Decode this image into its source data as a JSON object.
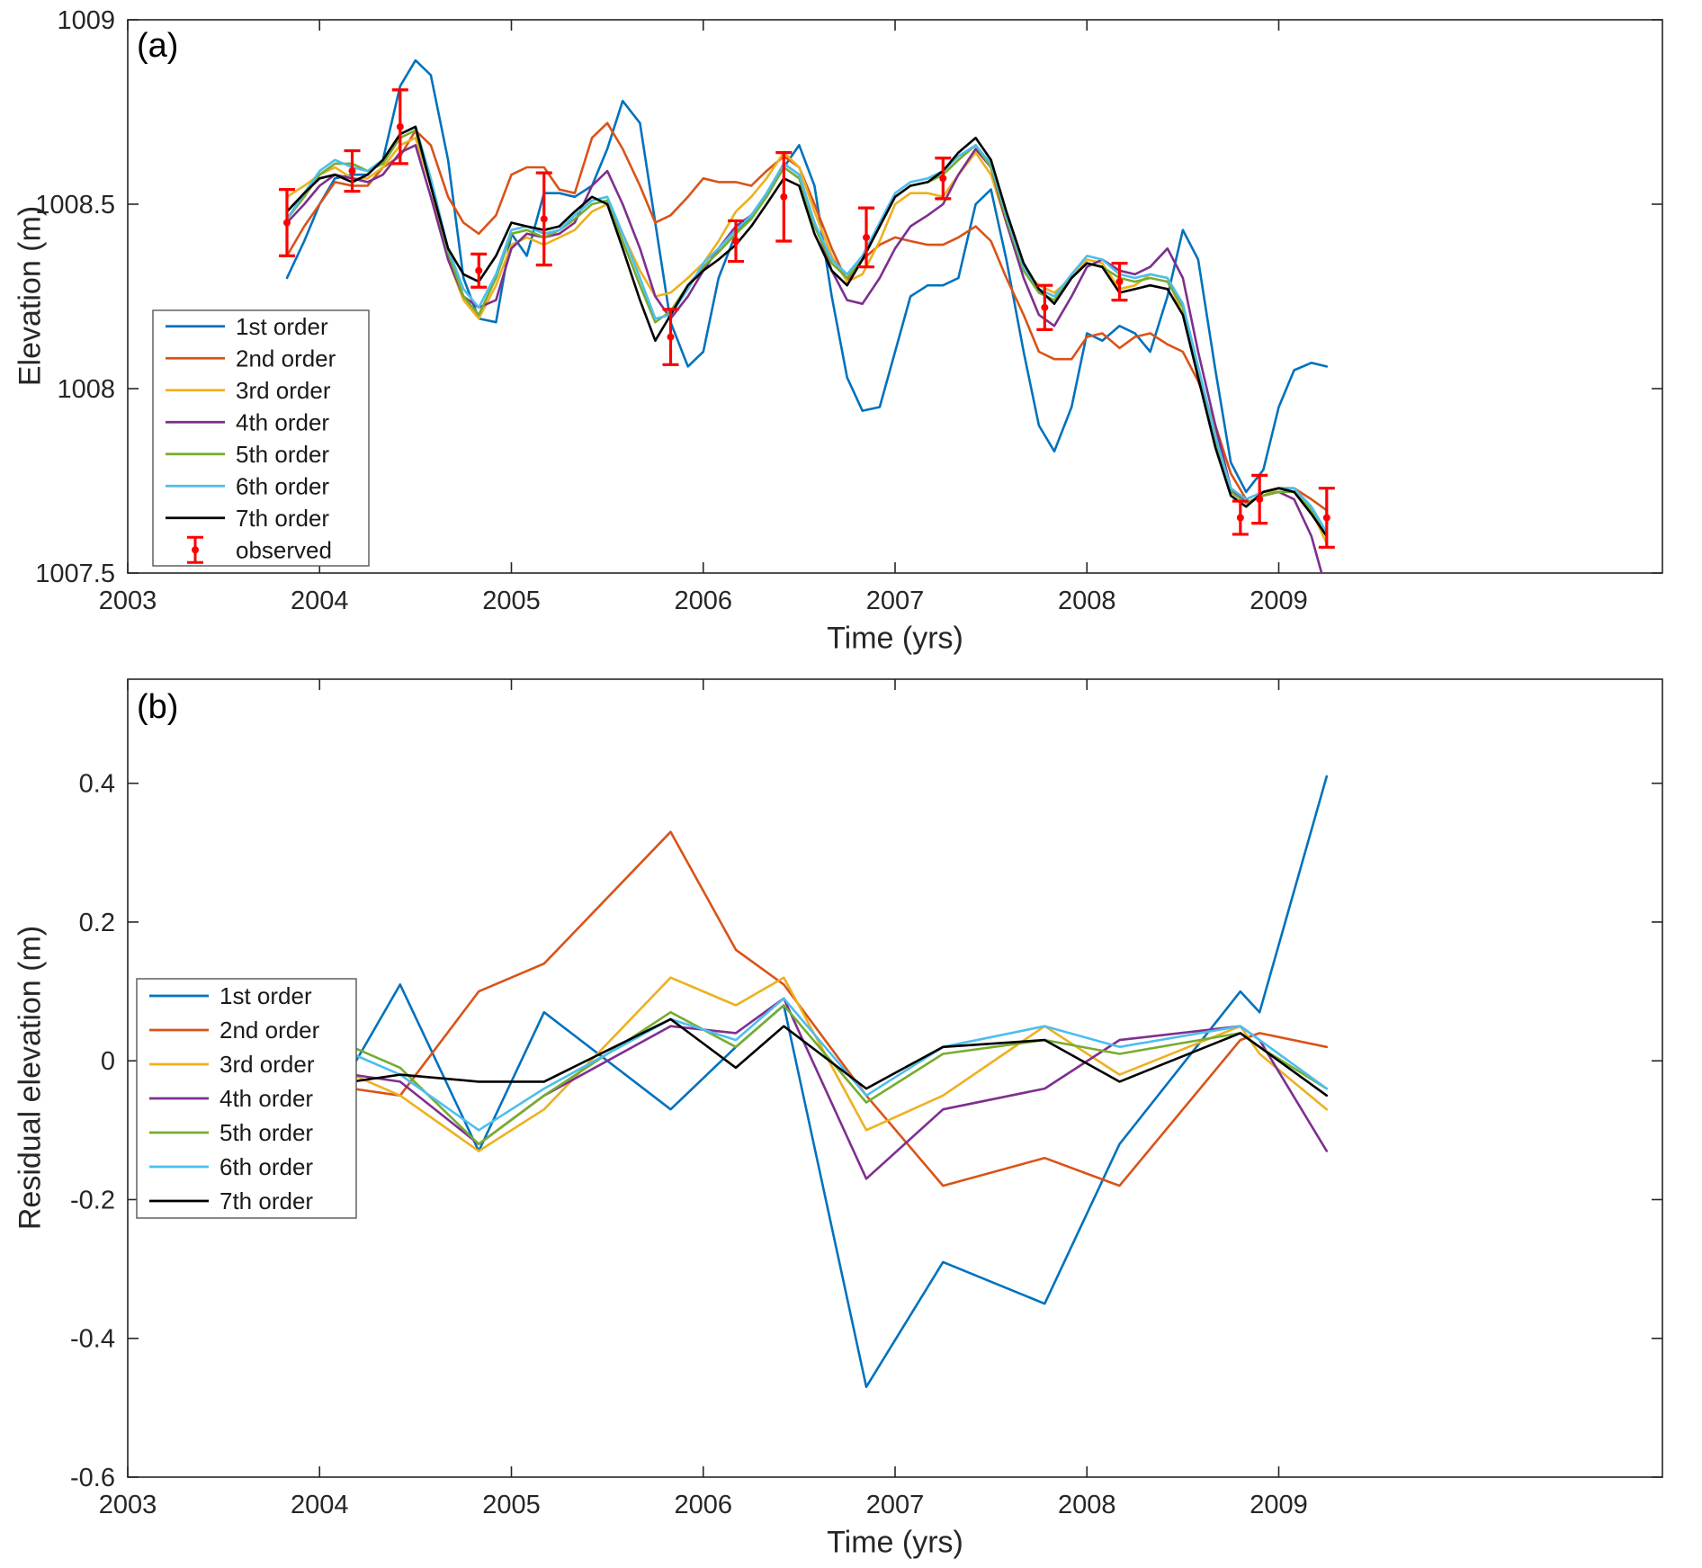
{
  "figure_colors": {
    "order1": "#0072BD",
    "order2": "#D95319",
    "order3": "#EDB120",
    "order4": "#7E2F8E",
    "order5": "#77AC30",
    "order6": "#4DBEEE",
    "order7": "#000000",
    "observed": "#FF0000",
    "axis": "#262626"
  },
  "chart_data": [
    {
      "id": "a",
      "type": "line",
      "panel_label": "(a)",
      "xlabel": "Time (yrs)",
      "ylabel": "Elevation (m)",
      "xlim": [
        2003,
        2011
      ],
      "ylim": [
        1007.5,
        1009
      ],
      "xticks": [
        2003,
        2004,
        2005,
        2006,
        2007,
        2008,
        2009
      ],
      "yticks": [
        1007.5,
        1008,
        1008.5,
        1009
      ],
      "grid": false,
      "legend_position": "west",
      "x": [
        2003.83,
        2003.92,
        2004.0,
        2004.08,
        2004.17,
        2004.25,
        2004.33,
        2004.42,
        2004.5,
        2004.58,
        2004.67,
        2004.75,
        2004.83,
        2004.92,
        2005.0,
        2005.08,
        2005.17,
        2005.25,
        2005.33,
        2005.42,
        2005.5,
        2005.58,
        2005.67,
        2005.75,
        2005.83,
        2005.92,
        2006.0,
        2006.08,
        2006.17,
        2006.25,
        2006.33,
        2006.42,
        2006.5,
        2006.58,
        2006.67,
        2006.75,
        2006.83,
        2006.92,
        2007.0,
        2007.08,
        2007.17,
        2007.25,
        2007.33,
        2007.42,
        2007.5,
        2007.58,
        2007.67,
        2007.75,
        2007.83,
        2007.92,
        2008.0,
        2008.08,
        2008.17,
        2008.25,
        2008.33,
        2008.42,
        2008.5,
        2008.58,
        2008.67,
        2008.75,
        2008.83,
        2008.92,
        2009.0,
        2009.08,
        2009.17,
        2009.25
      ],
      "series": [
        {
          "name": "1st order",
          "color": "#0072BD",
          "values": [
            1008.3,
            1008.4,
            1008.5,
            1008.57,
            1008.58,
            1008.58,
            1008.62,
            1008.82,
            1008.89,
            1008.85,
            1008.62,
            1008.3,
            1008.19,
            1008.18,
            1008.42,
            1008.36,
            1008.53,
            1008.53,
            1008.52,
            1008.55,
            1008.65,
            1008.78,
            1008.72,
            1008.45,
            1008.18,
            1008.06,
            1008.1,
            1008.3,
            1008.42,
            1008.47,
            1008.52,
            1008.6,
            1008.66,
            1008.55,
            1008.25,
            1008.03,
            1007.94,
            1007.95,
            1008.1,
            1008.25,
            1008.28,
            1008.28,
            1008.3,
            1008.5,
            1008.54,
            1008.35,
            1008.1,
            1007.9,
            1007.83,
            1007.95,
            1008.15,
            1008.13,
            1008.17,
            1008.15,
            1008.1,
            1008.25,
            1008.43,
            1008.35,
            1008.05,
            1007.8,
            1007.72,
            1007.78,
            1007.95,
            1008.05,
            1008.07,
            1008.06
          ]
        },
        {
          "name": "2nd order",
          "color": "#D95319",
          "values": [
            1008.36,
            1008.44,
            1008.5,
            1008.56,
            1008.55,
            1008.55,
            1008.6,
            1008.63,
            1008.7,
            1008.66,
            1008.52,
            1008.45,
            1008.42,
            1008.47,
            1008.58,
            1008.6,
            1008.6,
            1008.54,
            1008.53,
            1008.68,
            1008.72,
            1008.65,
            1008.55,
            1008.45,
            1008.47,
            1008.52,
            1008.57,
            1008.56,
            1008.56,
            1008.55,
            1008.59,
            1008.63,
            1008.6,
            1008.5,
            1008.38,
            1008.29,
            1008.35,
            1008.39,
            1008.41,
            1008.4,
            1008.39,
            1008.39,
            1008.41,
            1008.44,
            1008.4,
            1008.3,
            1008.2,
            1008.1,
            1008.08,
            1008.08,
            1008.14,
            1008.15,
            1008.11,
            1008.14,
            1008.15,
            1008.12,
            1008.1,
            1008.02,
            1007.9,
            1007.77,
            1007.7,
            1007.72,
            1007.73,
            1007.73,
            1007.7,
            1007.67
          ]
        },
        {
          "name": "3rd order",
          "color": "#EDB120",
          "values": [
            1008.52,
            1008.55,
            1008.58,
            1008.6,
            1008.57,
            1008.57,
            1008.6,
            1008.66,
            1008.68,
            1008.55,
            1008.35,
            1008.24,
            1008.19,
            1008.28,
            1008.39,
            1008.41,
            1008.39,
            1008.41,
            1008.43,
            1008.48,
            1008.5,
            1008.42,
            1008.32,
            1008.25,
            1008.26,
            1008.3,
            1008.34,
            1008.4,
            1008.48,
            1008.52,
            1008.57,
            1008.64,
            1008.6,
            1008.48,
            1008.36,
            1008.29,
            1008.31,
            1008.4,
            1008.5,
            1008.53,
            1008.53,
            1008.52,
            1008.58,
            1008.64,
            1008.58,
            1008.45,
            1008.32,
            1008.28,
            1008.26,
            1008.3,
            1008.35,
            1008.34,
            1008.27,
            1008.28,
            1008.31,
            1008.3,
            1008.2,
            1008.05,
            1007.88,
            1007.73,
            1007.69,
            1007.71,
            1007.73,
            1007.73,
            1007.67,
            1007.58
          ]
        },
        {
          "name": "4th order",
          "color": "#7E2F8E",
          "values": [
            1008.45,
            1008.5,
            1008.55,
            1008.58,
            1008.57,
            1008.56,
            1008.58,
            1008.64,
            1008.66,
            1008.52,
            1008.35,
            1008.25,
            1008.22,
            1008.24,
            1008.38,
            1008.42,
            1008.41,
            1008.42,
            1008.45,
            1008.55,
            1008.59,
            1008.5,
            1008.38,
            1008.25,
            1008.19,
            1008.25,
            1008.32,
            1008.38,
            1008.44,
            1008.47,
            1008.52,
            1008.61,
            1008.58,
            1008.45,
            1008.32,
            1008.24,
            1008.23,
            1008.3,
            1008.38,
            1008.44,
            1008.47,
            1008.5,
            1008.58,
            1008.65,
            1008.6,
            1008.45,
            1008.3,
            1008.2,
            1008.17,
            1008.25,
            1008.33,
            1008.35,
            1008.32,
            1008.31,
            1008.33,
            1008.38,
            1008.3,
            1008.1,
            1007.9,
            1007.73,
            1007.69,
            1007.71,
            1007.72,
            1007.7,
            1007.6,
            1007.45
          ]
        },
        {
          "name": "5th order",
          "color": "#77AC30",
          "values": [
            1008.46,
            1008.52,
            1008.58,
            1008.61,
            1008.61,
            1008.59,
            1008.61,
            1008.68,
            1008.7,
            1008.55,
            1008.37,
            1008.25,
            1008.2,
            1008.3,
            1008.42,
            1008.43,
            1008.41,
            1008.43,
            1008.46,
            1008.5,
            1008.51,
            1008.4,
            1008.28,
            1008.18,
            1008.21,
            1008.28,
            1008.33,
            1008.37,
            1008.42,
            1008.46,
            1008.52,
            1008.6,
            1008.57,
            1008.44,
            1008.34,
            1008.3,
            1008.35,
            1008.44,
            1008.52,
            1008.55,
            1008.56,
            1008.58,
            1008.62,
            1008.66,
            1008.6,
            1008.46,
            1008.32,
            1008.26,
            1008.24,
            1008.3,
            1008.34,
            1008.33,
            1008.3,
            1008.29,
            1008.3,
            1008.29,
            1008.22,
            1008.05,
            1007.86,
            1007.72,
            1007.69,
            1007.71,
            1007.72,
            1007.72,
            1007.67,
            1007.61
          ]
        },
        {
          "name": "6th order",
          "color": "#4DBEEE",
          "values": [
            1008.46,
            1008.53,
            1008.59,
            1008.62,
            1008.6,
            1008.59,
            1008.62,
            1008.69,
            1008.71,
            1008.57,
            1008.38,
            1008.27,
            1008.22,
            1008.31,
            1008.43,
            1008.44,
            1008.42,
            1008.43,
            1008.47,
            1008.51,
            1008.52,
            1008.42,
            1008.3,
            1008.19,
            1008.2,
            1008.27,
            1008.34,
            1008.38,
            1008.43,
            1008.47,
            1008.53,
            1008.61,
            1008.58,
            1008.45,
            1008.35,
            1008.31,
            1008.36,
            1008.45,
            1008.53,
            1008.56,
            1008.57,
            1008.59,
            1008.63,
            1008.66,
            1008.61,
            1008.47,
            1008.33,
            1008.27,
            1008.25,
            1008.31,
            1008.36,
            1008.35,
            1008.31,
            1008.3,
            1008.31,
            1008.3,
            1008.23,
            1008.06,
            1007.87,
            1007.73,
            1007.7,
            1007.72,
            1007.73,
            1007.73,
            1007.68,
            1007.61
          ]
        },
        {
          "name": "7th order",
          "color": "#000000",
          "values": [
            1008.48,
            1008.53,
            1008.57,
            1008.58,
            1008.56,
            1008.58,
            1008.62,
            1008.69,
            1008.71,
            1008.55,
            1008.38,
            1008.31,
            1008.29,
            1008.36,
            1008.45,
            1008.44,
            1008.43,
            1008.44,
            1008.48,
            1008.52,
            1008.5,
            1008.38,
            1008.24,
            1008.13,
            1008.2,
            1008.28,
            1008.32,
            1008.35,
            1008.39,
            1008.44,
            1008.5,
            1008.57,
            1008.55,
            1008.42,
            1008.32,
            1008.28,
            1008.35,
            1008.44,
            1008.52,
            1008.55,
            1008.56,
            1008.59,
            1008.64,
            1008.68,
            1008.62,
            1008.48,
            1008.34,
            1008.27,
            1008.23,
            1008.3,
            1008.34,
            1008.33,
            1008.26,
            1008.27,
            1008.28,
            1008.27,
            1008.2,
            1008.03,
            1007.84,
            1007.71,
            1007.68,
            1007.72,
            1007.73,
            1007.72,
            1007.66,
            1007.6
          ]
        }
      ],
      "errorbars": {
        "name": "observed",
        "color": "#FF0000",
        "points": [
          {
            "t": 2003.83,
            "y": 1008.45,
            "err": 0.09
          },
          {
            "t": 2004.17,
            "y": 1008.59,
            "err": 0.055
          },
          {
            "t": 2004.42,
            "y": 1008.71,
            "err": 0.1
          },
          {
            "t": 2004.83,
            "y": 1008.32,
            "err": 0.045
          },
          {
            "t": 2005.17,
            "y": 1008.46,
            "err": 0.125
          },
          {
            "t": 2005.83,
            "y": 1008.14,
            "err": 0.075
          },
          {
            "t": 2006.17,
            "y": 1008.4,
            "err": 0.055
          },
          {
            "t": 2006.42,
            "y": 1008.52,
            "err": 0.12
          },
          {
            "t": 2006.85,
            "y": 1008.41,
            "err": 0.08
          },
          {
            "t": 2007.25,
            "y": 1008.57,
            "err": 0.055
          },
          {
            "t": 2007.78,
            "y": 1008.22,
            "err": 0.06
          },
          {
            "t": 2008.17,
            "y": 1008.29,
            "err": 0.05
          },
          {
            "t": 2008.8,
            "y": 1007.65,
            "err": 0.045
          },
          {
            "t": 2008.9,
            "y": 1007.7,
            "err": 0.065
          },
          {
            "t": 2009.25,
            "y": 1007.65,
            "err": 0.08
          }
        ]
      }
    },
    {
      "id": "b",
      "type": "line",
      "panel_label": "(b)",
      "xlabel": "Time (yrs)",
      "ylabel": "Residual elevation (m)",
      "xlim": [
        2003,
        2011
      ],
      "ylim": [
        -0.6,
        0.55
      ],
      "xticks": [
        2003,
        2004,
        2005,
        2006,
        2007,
        2008,
        2009
      ],
      "yticks": [
        -0.6,
        -0.4,
        -0.2,
        0,
        0.2,
        0.4
      ],
      "grid": false,
      "legend_position": "southwest",
      "x": [
        2003.83,
        2004.17,
        2004.42,
        2004.83,
        2005.17,
        2005.83,
        2006.17,
        2006.42,
        2006.85,
        2007.25,
        2007.78,
        2008.17,
        2008.8,
        2008.9,
        2009.25
      ],
      "series": [
        {
          "name": "1st order",
          "color": "#0072BD",
          "values": [
            -0.15,
            -0.01,
            0.11,
            -0.13,
            0.07,
            -0.07,
            0.02,
            0.08,
            -0.47,
            -0.29,
            -0.35,
            -0.12,
            0.1,
            0.07,
            0.41
          ]
        },
        {
          "name": "2nd order",
          "color": "#D95319",
          "values": [
            -0.09,
            -0.04,
            -0.05,
            0.1,
            0.14,
            0.33,
            0.16,
            0.11,
            -0.05,
            -0.18,
            -0.14,
            -0.18,
            0.03,
            0.04,
            0.02
          ]
        },
        {
          "name": "3rd order",
          "color": "#EDB120",
          "values": [
            0.07,
            -0.02,
            -0.05,
            -0.13,
            -0.07,
            0.12,
            0.08,
            0.12,
            -0.1,
            -0.05,
            0.05,
            -0.02,
            0.05,
            0.01,
            -0.07
          ]
        },
        {
          "name": "4th order",
          "color": "#7E2F8E",
          "values": [
            0.0,
            -0.02,
            -0.03,
            -0.12,
            -0.05,
            0.05,
            0.04,
            0.09,
            -0.17,
            -0.07,
            -0.04,
            0.03,
            0.05,
            0.03,
            -0.13
          ]
        },
        {
          "name": "5th order",
          "color": "#77AC30",
          "values": [
            0.01,
            0.02,
            -0.01,
            -0.12,
            -0.05,
            0.07,
            0.02,
            0.08,
            -0.06,
            0.01,
            0.03,
            0.01,
            0.04,
            0.02,
            -0.04
          ]
        },
        {
          "name": "6th order",
          "color": "#4DBEEE",
          "values": [
            0.01,
            0.01,
            -0.02,
            -0.1,
            -0.04,
            0.06,
            0.03,
            0.09,
            -0.05,
            0.02,
            0.05,
            0.02,
            0.05,
            0.03,
            -0.04
          ]
        },
        {
          "name": "7th order",
          "color": "#000000",
          "values": [
            0.03,
            -0.03,
            -0.02,
            -0.03,
            -0.03,
            0.06,
            -0.01,
            0.05,
            -0.04,
            0.02,
            0.03,
            -0.03,
            0.04,
            0.02,
            -0.05
          ]
        }
      ]
    }
  ]
}
